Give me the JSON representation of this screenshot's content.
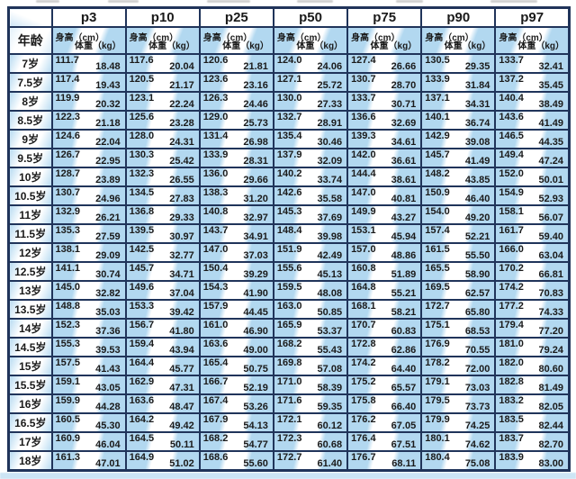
{
  "colors": {
    "cell_blue": "#b2d8f0",
    "border_navy": "#20345a",
    "text": "#1a1a1a",
    "page_strip_blue": "#cde5f5"
  },
  "chart_data": {
    "type": "table",
    "age_header": "年龄",
    "percentile_headers": [
      "p3",
      "p10",
      "p25",
      "p50",
      "p75",
      "p90",
      "p97"
    ],
    "height_label": "身高（cm）",
    "weight_label": "体重（kg）",
    "rows": [
      {
        "age": "7岁",
        "cells": [
          [
            "111.7",
            "18.48"
          ],
          [
            "117.6",
            "20.04"
          ],
          [
            "120.6",
            "21.81"
          ],
          [
            "124.0",
            "24.06"
          ],
          [
            "127.4",
            "26.66"
          ],
          [
            "130.5",
            "29.35"
          ],
          [
            "133.7",
            "32.41"
          ]
        ]
      },
      {
        "age": "7.5岁",
        "cells": [
          [
            "117.4",
            "19.43"
          ],
          [
            "120.5",
            "21.17"
          ],
          [
            "123.6",
            "23.16"
          ],
          [
            "127.1",
            "25.72"
          ],
          [
            "130.7",
            "28.70"
          ],
          [
            "133.9",
            "31.84"
          ],
          [
            "137.2",
            "35.45"
          ]
        ]
      },
      {
        "age": "8岁",
        "cells": [
          [
            "119.9",
            "20.32"
          ],
          [
            "123.1",
            "22.24"
          ],
          [
            "126.3",
            "24.46"
          ],
          [
            "130.0",
            "27.33"
          ],
          [
            "133.7",
            "30.71"
          ],
          [
            "137.1",
            "34.31"
          ],
          [
            "140.4",
            "38.49"
          ]
        ]
      },
      {
        "age": "8.5岁",
        "cells": [
          [
            "122.3",
            "21.18"
          ],
          [
            "125.6",
            "23.28"
          ],
          [
            "129.0",
            "25.73"
          ],
          [
            "132.7",
            "28.91"
          ],
          [
            "136.6",
            "32.69"
          ],
          [
            "140.1",
            "36.74"
          ],
          [
            "143.6",
            "41.49"
          ]
        ]
      },
      {
        "age": "9岁",
        "cells": [
          [
            "124.6",
            "22.04"
          ],
          [
            "128.0",
            "24.31"
          ],
          [
            "131.4",
            "26.98"
          ],
          [
            "135.4",
            "30.46"
          ],
          [
            "139.3",
            "34.61"
          ],
          [
            "142.9",
            "39.08"
          ],
          [
            "146.5",
            "44.35"
          ]
        ]
      },
      {
        "age": "9.5岁",
        "cells": [
          [
            "126.7",
            "22.95"
          ],
          [
            "130.3",
            "25.42"
          ],
          [
            "133.9",
            "28.31"
          ],
          [
            "137.9",
            "32.09"
          ],
          [
            "142.0",
            "36.61"
          ],
          [
            "145.7",
            "41.49"
          ],
          [
            "149.4",
            "47.24"
          ]
        ]
      },
      {
        "age": "10岁",
        "cells": [
          [
            "128.7",
            "23.89"
          ],
          [
            "132.3",
            "26.55"
          ],
          [
            "136.0",
            "29.66"
          ],
          [
            "140.2",
            "33.74"
          ],
          [
            "144.4",
            "38.61"
          ],
          [
            "148.2",
            "43.85"
          ],
          [
            "152.0",
            "50.01"
          ]
        ]
      },
      {
        "age": "10.5岁",
        "cells": [
          [
            "130.7",
            "24.96"
          ],
          [
            "134.5",
            "27.83"
          ],
          [
            "138.3",
            "31.20"
          ],
          [
            "142.6",
            "35.58"
          ],
          [
            "147.0",
            "40.81"
          ],
          [
            "150.9",
            "46.40"
          ],
          [
            "154.9",
            "52.93"
          ]
        ]
      },
      {
        "age": "11岁",
        "cells": [
          [
            "132.9",
            "26.21"
          ],
          [
            "136.8",
            "29.33"
          ],
          [
            "140.8",
            "32.97"
          ],
          [
            "145.3",
            "37.69"
          ],
          [
            "149.9",
            "43.27"
          ],
          [
            "154.0",
            "49.20"
          ],
          [
            "158.1",
            "56.07"
          ]
        ]
      },
      {
        "age": "11.5岁",
        "cells": [
          [
            "135.3",
            "27.59"
          ],
          [
            "139.5",
            "30.97"
          ],
          [
            "143.7",
            "34.91"
          ],
          [
            "148.4",
            "39.98"
          ],
          [
            "153.1",
            "45.94"
          ],
          [
            "157.4",
            "52.21"
          ],
          [
            "161.7",
            "59.40"
          ]
        ]
      },
      {
        "age": "12岁",
        "cells": [
          [
            "138.1",
            "29.09"
          ],
          [
            "142.5",
            "32.77"
          ],
          [
            "147.0",
            "37.03"
          ],
          [
            "151.9",
            "42.49"
          ],
          [
            "157.0",
            "48.86"
          ],
          [
            "161.5",
            "55.50"
          ],
          [
            "166.0",
            "63.04"
          ]
        ]
      },
      {
        "age": "12.5岁",
        "cells": [
          [
            "141.1",
            "30.74"
          ],
          [
            "145.7",
            "34.71"
          ],
          [
            "150.4",
            "39.29"
          ],
          [
            "155.6",
            "45.13"
          ],
          [
            "160.8",
            "51.89"
          ],
          [
            "165.5",
            "58.90"
          ],
          [
            "170.2",
            "66.81"
          ]
        ]
      },
      {
        "age": "13岁",
        "cells": [
          [
            "145.0",
            "32.82"
          ],
          [
            "149.6",
            "37.04"
          ],
          [
            "154.3",
            "41.90"
          ],
          [
            "159.5",
            "48.08"
          ],
          [
            "164.8",
            "55.21"
          ],
          [
            "169.5",
            "62.57"
          ],
          [
            "174.2",
            "70.83"
          ]
        ]
      },
      {
        "age": "13.5岁",
        "cells": [
          [
            "148.8",
            "35.03"
          ],
          [
            "153.3",
            "39.42"
          ],
          [
            "157.9",
            "44.45"
          ],
          [
            "163.0",
            "50.85"
          ],
          [
            "168.1",
            "58.21"
          ],
          [
            "172.7",
            "65.80"
          ],
          [
            "177.2",
            "74.33"
          ]
        ]
      },
      {
        "age": "14岁",
        "cells": [
          [
            "152.3",
            "37.36"
          ],
          [
            "156.7",
            "41.80"
          ],
          [
            "161.0",
            "46.90"
          ],
          [
            "165.9",
            "53.37"
          ],
          [
            "170.7",
            "60.83"
          ],
          [
            "175.1",
            "68.53"
          ],
          [
            "179.4",
            "77.20"
          ]
        ]
      },
      {
        "age": "14.5岁",
        "cells": [
          [
            "155.3",
            "39.53"
          ],
          [
            "159.4",
            "43.94"
          ],
          [
            "163.6",
            "49.00"
          ],
          [
            "168.2",
            "55.43"
          ],
          [
            "172.8",
            "62.86"
          ],
          [
            "176.9",
            "70.55"
          ],
          [
            "181.0",
            "79.24"
          ]
        ]
      },
      {
        "age": "15岁",
        "cells": [
          [
            "157.5",
            "41.43"
          ],
          [
            "164.4",
            "45.77"
          ],
          [
            "165.4",
            "50.75"
          ],
          [
            "169.8",
            "57.08"
          ],
          [
            "174.2",
            "64.40"
          ],
          [
            "178.2",
            "72.00"
          ],
          [
            "182.0",
            "80.60"
          ]
        ]
      },
      {
        "age": "15.5岁",
        "cells": [
          [
            "159.1",
            "43.05"
          ],
          [
            "162.9",
            "47.31"
          ],
          [
            "166.7",
            "52.19"
          ],
          [
            "171.0",
            "58.39"
          ],
          [
            "175.2",
            "65.57"
          ],
          [
            "179.1",
            "73.03"
          ],
          [
            "182.8",
            "81.49"
          ]
        ]
      },
      {
        "age": "16岁",
        "cells": [
          [
            "159.9",
            "44.28"
          ],
          [
            "163.6",
            "48.47"
          ],
          [
            "167.4",
            "53.26"
          ],
          [
            "171.6",
            "59.35"
          ],
          [
            "175.8",
            "66.40"
          ],
          [
            "179.5",
            "73.73"
          ],
          [
            "183.2",
            "82.05"
          ]
        ]
      },
      {
        "age": "16.5岁",
        "cells": [
          [
            "160.5",
            "45.30"
          ],
          [
            "164.2",
            "49.42"
          ],
          [
            "167.9",
            "54.13"
          ],
          [
            "172.1",
            "60.12"
          ],
          [
            "176.2",
            "67.05"
          ],
          [
            "179.9",
            "74.25"
          ],
          [
            "183.5",
            "82.44"
          ]
        ]
      },
      {
        "age": "17岁",
        "cells": [
          [
            "160.9",
            "46.04"
          ],
          [
            "164.5",
            "50.11"
          ],
          [
            "168.2",
            "54.77"
          ],
          [
            "172.3",
            "60.68"
          ],
          [
            "176.4",
            "67.51"
          ],
          [
            "180.1",
            "74.62"
          ],
          [
            "183.7",
            "82.70"
          ]
        ]
      },
      {
        "age": "18岁",
        "cells": [
          [
            "161.3",
            "47.01"
          ],
          [
            "164.9",
            "51.02"
          ],
          [
            "168.6",
            "55.60"
          ],
          [
            "172.7",
            "61.40"
          ],
          [
            "176.7",
            "68.11"
          ],
          [
            "180.4",
            "75.08"
          ],
          [
            "183.9",
            "83.00"
          ]
        ]
      }
    ]
  }
}
